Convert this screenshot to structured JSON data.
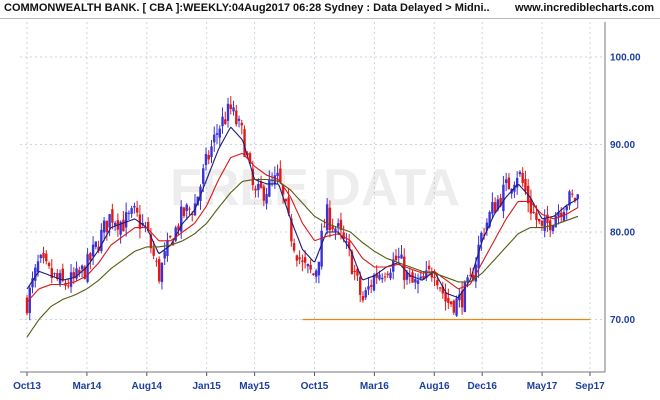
{
  "header": {
    "title": "COMMONWEALTH BANK. [ CBA ]:WEEKLY:04Aug2017 06:28 Sydney : Data Delayed > Midni..",
    "site": "www.incrediblecharts.com"
  },
  "watermark": "FREE DATA",
  "colors": {
    "up": "#3a32d6",
    "down": "#e01818",
    "ma_short": "#1a1a7a",
    "ma_mid": "#d81818",
    "ma_long": "#5a5a10",
    "support": "#e08a18",
    "axis_text": "#1c3f9e",
    "grid": "#c8d4e8"
  },
  "chart_data": {
    "type": "candlestick",
    "title": "COMMONWEALTH BANK. [ CBA ]:WEEKLY:04Aug2017 06:28 Sydney : Data Delayed > Midni..",
    "x_ticks": [
      "Oct13",
      "Mar14",
      "Aug14",
      "Jan15",
      "May15",
      "Oct15",
      "Mar16",
      "Aug16",
      "Dec16",
      "May17",
      "Sep17"
    ],
    "y_ticks": [
      "70.00",
      "80.00",
      "90.00",
      "100.00"
    ],
    "ylim": [
      64,
      104
    ],
    "grid": true,
    "support_line": {
      "value": 70.0,
      "from": "Sep15",
      "to": "Sep17"
    },
    "close_path": [
      [
        "Oct13",
        72.0
      ],
      [
        "Nov13",
        76.5
      ],
      [
        "Dec13",
        75.0
      ],
      [
        "Jan14",
        74.0
      ],
      [
        "Feb14",
        74.5
      ],
      [
        "Mar14",
        76.0
      ],
      [
        "Apr14",
        79.0
      ],
      [
        "May14",
        82.0
      ],
      [
        "Jun14",
        81.0
      ],
      [
        "Jul14",
        82.0
      ],
      [
        "Aug14",
        80.0
      ],
      [
        "Sep14",
        75.0
      ],
      [
        "Oct14",
        79.0
      ],
      [
        "Nov14",
        82.0
      ],
      [
        "Dec14",
        83.0
      ],
      [
        "Jan15",
        88.0
      ],
      [
        "Feb15",
        92.0
      ],
      [
        "Mar15",
        94.0
      ],
      [
        "Apr15",
        91.0
      ],
      [
        "May15",
        84.0
      ],
      [
        "Jun15",
        85.0
      ],
      [
        "Jul15",
        86.0
      ],
      [
        "Aug15",
        80.0
      ],
      [
        "Sep15",
        76.0
      ],
      [
        "Oct15",
        75.0
      ],
      [
        "Nov15",
        82.0
      ],
      [
        "Dec15",
        80.0
      ],
      [
        "Jan16",
        77.0
      ],
      [
        "Feb16",
        72.0
      ],
      [
        "Mar16",
        75.0
      ],
      [
        "Apr16",
        76.0
      ],
      [
        "May16",
        77.0
      ],
      [
        "Jun16",
        74.0
      ],
      [
        "Jul16",
        74.0
      ],
      [
        "Aug16",
        76.0
      ],
      [
        "Sep16",
        72.0
      ],
      [
        "Oct16",
        72.0
      ],
      [
        "Nov16",
        74.0
      ],
      [
        "Dec16",
        80.0
      ],
      [
        "Jan17",
        83.0
      ],
      [
        "Feb17",
        85.0
      ],
      [
        "Mar17",
        87.0
      ],
      [
        "Apr17",
        83.0
      ],
      [
        "May17",
        80.0
      ],
      [
        "Jun17",
        82.0
      ],
      [
        "Jul17",
        83.5
      ],
      [
        "Aug17",
        84.0
      ]
    ],
    "moving_averages": [
      {
        "period": "short",
        "values": [
          73.5,
          75.5,
          75.0,
          74.5,
          74.8,
          76.0,
          78.0,
          80.5,
          81.0,
          81.5,
          80.5,
          77.5,
          78.5,
          81.0,
          82.5,
          86.0,
          89.5,
          92.0,
          90.5,
          86.0,
          85.5,
          85.5,
          81.5,
          78.0,
          76.5,
          80.0,
          80.0,
          78.0,
          74.5,
          75.0,
          76.0,
          76.5,
          75.0,
          74.5,
          75.5,
          73.0,
          72.5,
          74.5,
          79.0,
          82.0,
          84.0,
          85.5,
          84.0,
          81.5,
          81.8,
          83.0,
          83.8
        ]
      },
      {
        "period": "mid",
        "values": [
          72.0,
          73.5,
          74.0,
          74.0,
          74.3,
          75.0,
          76.5,
          78.5,
          79.5,
          80.5,
          80.5,
          79.0,
          79.0,
          80.0,
          81.0,
          83.0,
          86.0,
          88.5,
          89.0,
          87.5,
          86.5,
          86.0,
          84.0,
          81.0,
          79.0,
          79.5,
          79.8,
          79.0,
          77.0,
          76.0,
          76.0,
          76.3,
          75.8,
          75.3,
          75.5,
          74.5,
          73.5,
          74.0,
          76.5,
          79.0,
          81.5,
          83.5,
          83.5,
          82.0,
          81.5,
          82.0,
          82.8
        ]
      },
      {
        "period": "long",
        "values": [
          68.0,
          70.0,
          71.5,
          72.3,
          72.8,
          73.5,
          74.5,
          75.8,
          76.8,
          77.8,
          78.3,
          78.3,
          78.5,
          79.0,
          79.8,
          81.0,
          82.8,
          84.5,
          85.8,
          86.0,
          86.0,
          85.8,
          84.8,
          83.3,
          81.8,
          81.0,
          80.5,
          80.0,
          78.8,
          77.8,
          77.0,
          76.5,
          76.0,
          75.5,
          75.3,
          74.8,
          74.3,
          74.3,
          75.3,
          76.8,
          78.3,
          79.8,
          80.5,
          80.5,
          80.8,
          81.3,
          81.8
        ]
      }
    ]
  }
}
